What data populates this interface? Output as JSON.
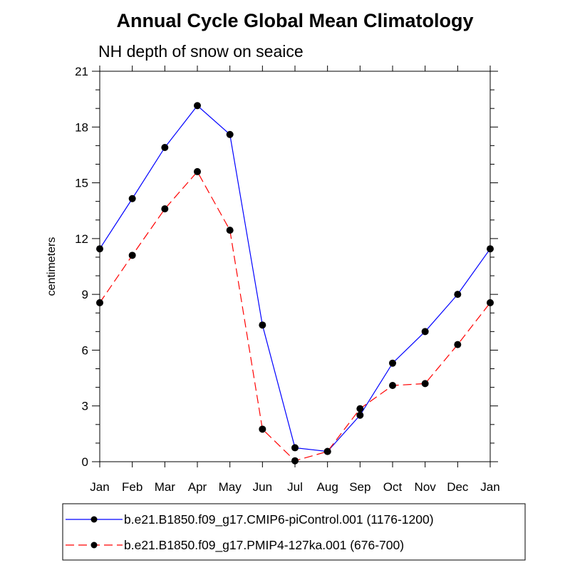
{
  "chart_data": {
    "type": "line",
    "title": "Annual Cycle Global Mean Climatology",
    "subtitle": "NH depth of snow on seaice",
    "xlabel": "",
    "ylabel": "centimeters",
    "categories": [
      "Jan",
      "Feb",
      "Mar",
      "Apr",
      "May",
      "Jun",
      "Jul",
      "Aug",
      "Sep",
      "Oct",
      "Nov",
      "Dec",
      "Jan"
    ],
    "ylim": [
      0,
      21
    ],
    "yticks": [
      0,
      3,
      6,
      9,
      12,
      15,
      18,
      21
    ],
    "legend_position": "bottom",
    "series": [
      {
        "name": "b.e21.B1850.f09_g17.CMIP6-piControl.001 (1176-1200)",
        "color": "#0000ff",
        "dash": "solid",
        "values": [
          11.45,
          14.15,
          16.9,
          19.15,
          17.6,
          7.35,
          0.75,
          0.55,
          2.5,
          5.3,
          7.0,
          9.0,
          11.45
        ]
      },
      {
        "name": "b.e21.B1850.f09_g17.PMIP4-127ka.001 (676-700)",
        "color": "#ff0000",
        "dash": "dashed",
        "values": [
          8.55,
          11.1,
          13.6,
          15.6,
          12.45,
          1.75,
          0.05,
          0.55,
          2.85,
          4.1,
          4.2,
          6.3,
          8.55
        ]
      }
    ]
  }
}
